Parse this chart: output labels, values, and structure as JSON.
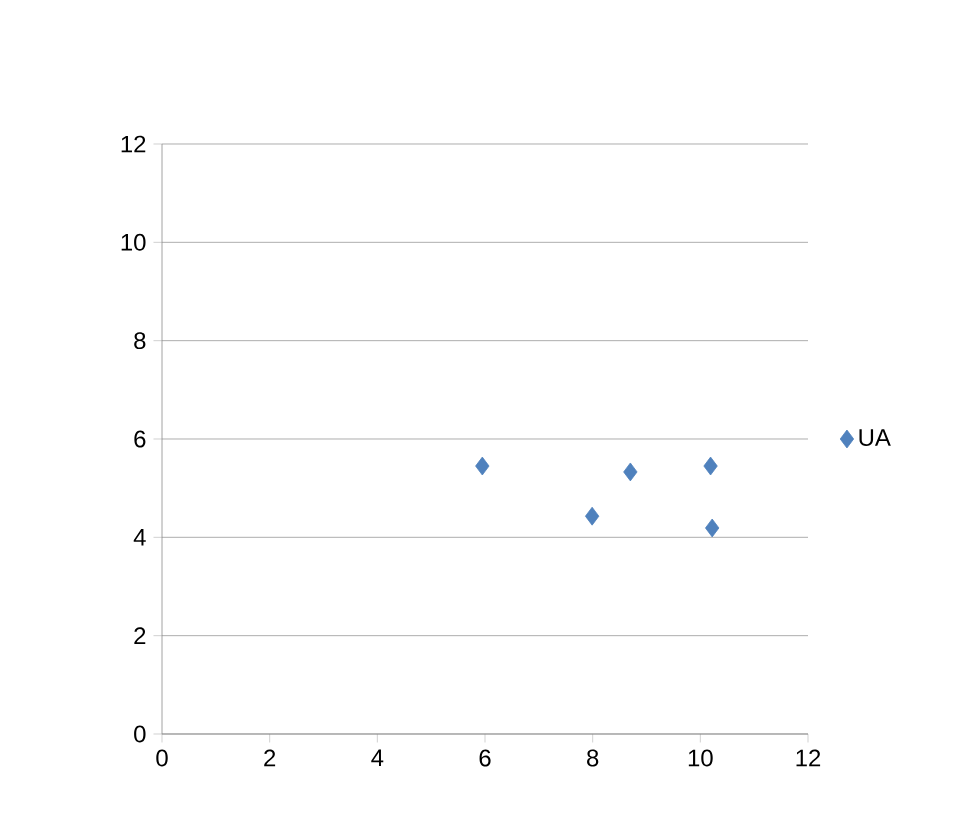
{
  "chart_data": {
    "type": "scatter",
    "series": [
      {
        "name": "UA",
        "color": "#4f81bd",
        "x": [
          5.95,
          7.99,
          8.7,
          10.19,
          10.22
        ],
        "values": [
          5.45,
          4.43,
          5.33,
          5.45,
          4.19
        ]
      }
    ],
    "xlim": [
      0,
      12
    ],
    "xticks": [
      0,
      2,
      4,
      6,
      8,
      10,
      12
    ],
    "ylim": [
      0,
      12
    ],
    "yticks": [
      0,
      2,
      4,
      6,
      8,
      10,
      12
    ],
    "grid": "y",
    "legend": "right",
    "marker": "diamond"
  }
}
